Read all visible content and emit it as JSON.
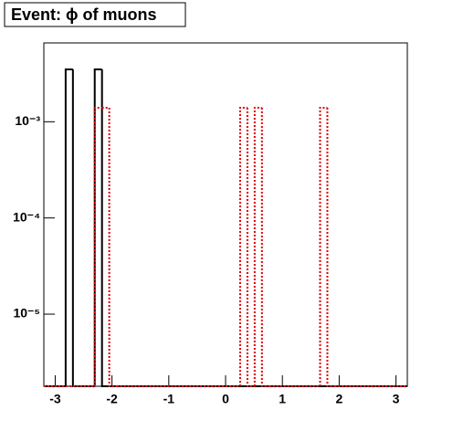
{
  "chart_data": {
    "type": "histogram",
    "title": "Event: ϕ of muons",
    "bins": [
      -3.2,
      -3.072,
      -2.944,
      -2.816,
      -2.688,
      -2.56,
      -2.432,
      -2.304,
      -2.176,
      -2.048,
      -1.92,
      -1.792,
      -1.664,
      -1.536,
      -1.408,
      -1.28,
      -1.152,
      -1.024,
      -0.896,
      -0.768,
      -0.64,
      -0.512,
      -0.384,
      -0.256,
      -0.128,
      0,
      0.128,
      0.256,
      0.384,
      0.512,
      0.64,
      0.768,
      0.896,
      1.024,
      1.152,
      1.28,
      1.408,
      1.536,
      1.664,
      1.792,
      1.92,
      2.048,
      2.176,
      2.304,
      2.432,
      2.56,
      2.688,
      2.816,
      2.944,
      3.072,
      3.2
    ],
    "series": [
      {
        "color": "#000000",
        "line_style": "solid",
        "values": [
          0,
          0,
          0,
          0.0035,
          0,
          0,
          0,
          0.0035,
          0,
          0,
          0,
          0,
          0,
          0,
          0,
          0,
          0,
          0,
          0,
          0,
          0,
          0,
          0,
          0,
          0,
          0,
          0,
          0,
          0,
          0,
          0,
          0,
          0,
          0,
          0,
          0,
          0,
          0,
          0,
          0,
          0,
          0,
          0,
          0,
          0,
          0,
          0,
          0,
          0,
          0
        ]
      },
      {
        "color": "#e00000",
        "line_style": "dotted",
        "values": [
          0,
          0,
          0,
          0,
          0,
          0,
          0,
          0.0014,
          0.0014,
          0,
          0,
          0,
          0,
          0,
          0,
          0,
          0,
          0,
          0,
          0,
          0,
          0,
          0,
          0,
          0,
          0,
          0,
          0.0014,
          0,
          0.0014,
          0,
          0,
          0,
          0,
          0,
          0,
          0,
          0,
          0.0014,
          0,
          0,
          0,
          0,
          0,
          0,
          0,
          0,
          0,
          0,
          0
        ]
      }
    ],
    "xlim": [
      -3.2,
      3.2
    ],
    "xticks": [
      -3,
      -2,
      -1,
      0,
      1,
      2,
      3
    ],
    "ylim": [
      1.78e-06,
      0.0066
    ],
    "log_y": true,
    "yticks": [
      {
        "value": 1e-05,
        "label": "10⁻⁵"
      },
      {
        "value": 0.0001,
        "label": "10⁻⁴"
      },
      {
        "value": 0.001,
        "label": "10⁻³"
      }
    ]
  }
}
